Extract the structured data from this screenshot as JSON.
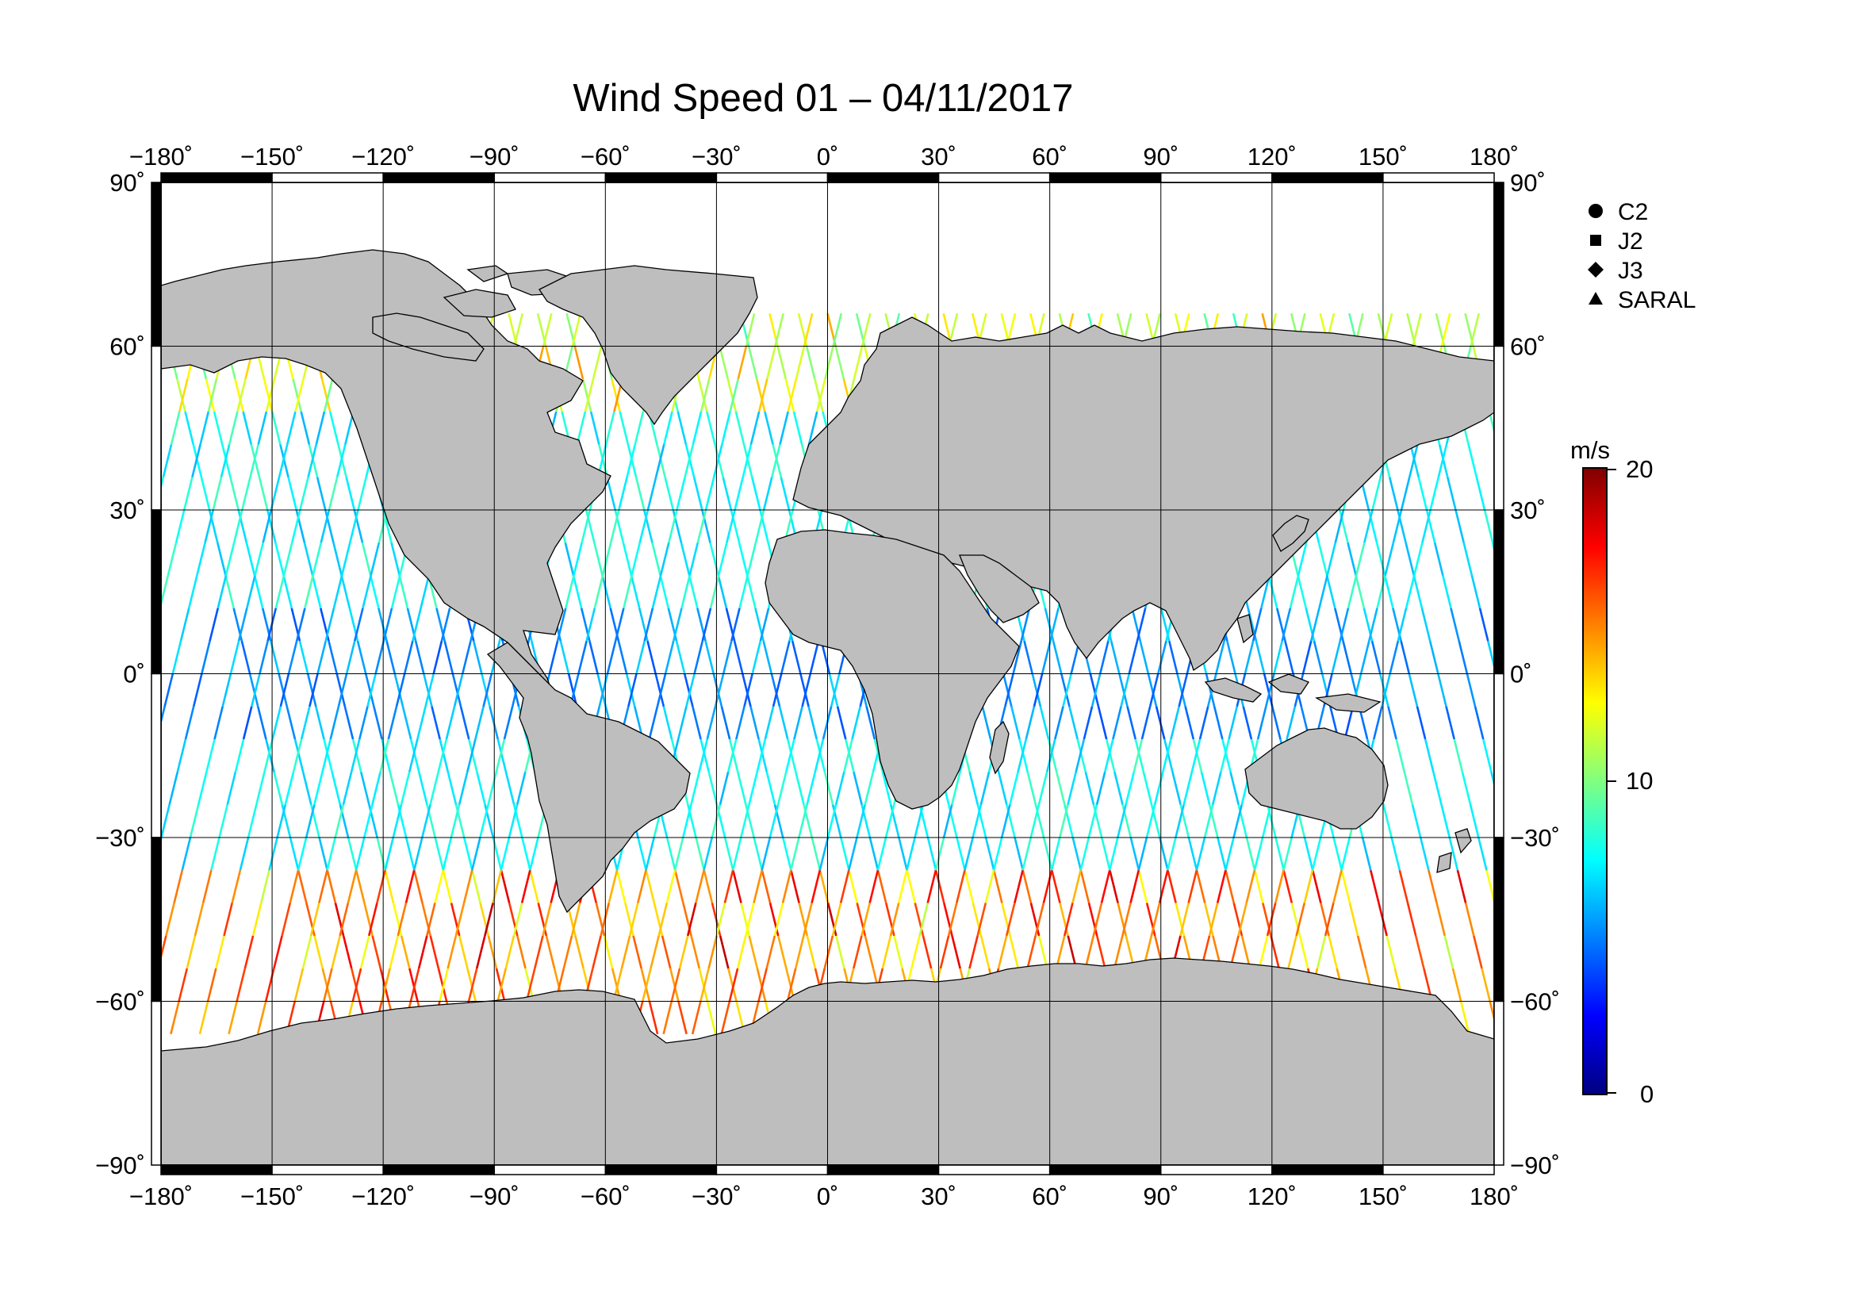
{
  "title": "Wind Speed 01 – 04/11/2017",
  "lon_ticks": [
    "−180˚",
    "−150˚",
    "−120˚",
    "−90˚",
    "−60˚",
    "−30˚",
    "0˚",
    "30˚",
    "60˚",
    "90˚",
    "120˚",
    "150˚",
    "180˚"
  ],
  "lat_ticks": [
    "90˚",
    "60˚",
    "30˚",
    "0˚",
    "−30˚",
    "−60˚",
    "−90˚"
  ],
  "legend": {
    "items": [
      {
        "label": "C2",
        "marker": "circle"
      },
      {
        "label": "J2",
        "marker": "square"
      },
      {
        "label": "J3",
        "marker": "diamond"
      },
      {
        "label": "SARAL",
        "marker": "triangle"
      }
    ]
  },
  "colorbar": {
    "unit": "m/s",
    "max_label": "20",
    "mid_label": "10",
    "min_label": "0",
    "range": [
      0,
      20
    ],
    "colors": [
      "#000080",
      "#0000ff",
      "#0080ff",
      "#00ffff",
      "#80ff80",
      "#ffff00",
      "#ff8000",
      "#ff0000",
      "#800000"
    ]
  },
  "land_color": "#bebebe",
  "ocean_color": "#ffffff",
  "projection": "equirectangular",
  "map_extent": {
    "lon": [
      -180,
      180
    ],
    "lat": [
      -90,
      90
    ]
  },
  "tracks": {
    "description": "satellite altimeter ground tracks colored by wind speed",
    "lat_coverage": [
      -66,
      66
    ]
  }
}
